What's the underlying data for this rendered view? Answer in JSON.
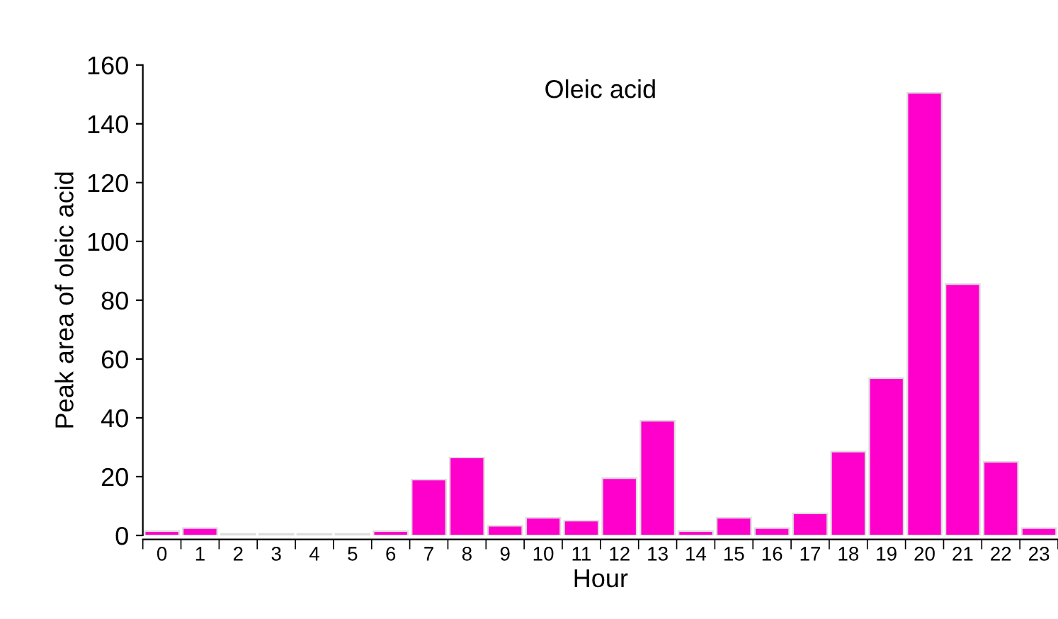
{
  "chart_data": {
    "type": "bar",
    "title": "Oleic acid",
    "xlabel": "Hour",
    "ylabel": "Peak area of oleic acid",
    "categories": [
      "0",
      "1",
      "2",
      "3",
      "4",
      "5",
      "6",
      "7",
      "8",
      "9",
      "10",
      "11",
      "12",
      "13",
      "14",
      "15",
      "16",
      "17",
      "18",
      "19",
      "20",
      "21",
      "22",
      "23"
    ],
    "values": [
      1.5,
      2.5,
      0.5,
      0.5,
      0.5,
      0.5,
      1.5,
      19,
      26.5,
      3.3,
      6,
      5,
      19.5,
      39,
      1.5,
      6,
      2.5,
      7.5,
      28.5,
      53.5,
      150.5,
      85.5,
      25,
      2.5
    ],
    "color": "#ff00cc",
    "ylim": [
      0,
      160
    ],
    "yticks": [
      0,
      20,
      40,
      60,
      80,
      100,
      120,
      140,
      160
    ],
    "grid": false,
    "legend": false
  }
}
